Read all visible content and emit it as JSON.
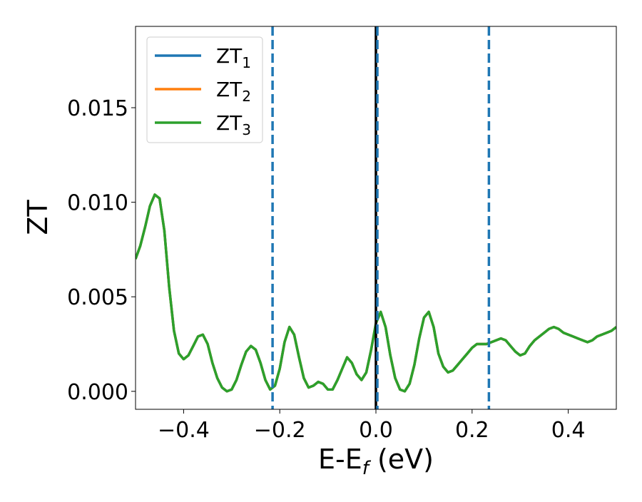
{
  "chart_data": {
    "type": "line",
    "title": "",
    "xlabel": "E-E",
    "xlabel_sub": "f",
    "xlabel_unit": " (eV)",
    "ylabel": "ZT",
    "xlim": [
      -0.5,
      0.5
    ],
    "ylim": [
      -0.00095,
      0.0193
    ],
    "grid": false,
    "legend_position": "top-left",
    "xticks": [
      {
        "value": -0.4,
        "label": "−0.4"
      },
      {
        "value": -0.2,
        "label": "−0.2"
      },
      {
        "value": 0.0,
        "label": "0.0"
      },
      {
        "value": 0.2,
        "label": "0.2"
      },
      {
        "value": 0.4,
        "label": "0.4"
      }
    ],
    "yticks": [
      {
        "value": 0.0,
        "label": "0.000"
      },
      {
        "value": 0.005,
        "label": "0.005"
      },
      {
        "value": 0.01,
        "label": "0.010"
      },
      {
        "value": 0.015,
        "label": "0.015"
      }
    ],
    "legend": [
      {
        "base": "ZT",
        "sub": "1",
        "color": "#1f77b4"
      },
      {
        "base": "ZT",
        "sub": "2",
        "color": "#ff7f0e"
      },
      {
        "base": "ZT",
        "sub": "3",
        "color": "#2ca02c"
      }
    ],
    "vlines": [
      {
        "x": -0.215,
        "style": "dashed",
        "color": "#1f77b4"
      },
      {
        "x": 0.0,
        "style": "solid",
        "color": "#000000"
      },
      {
        "x": 0.003,
        "style": "dashed",
        "color": "#1f77b4"
      },
      {
        "x": 0.235,
        "style": "dashed",
        "color": "#1f77b4"
      }
    ],
    "x": [
      -0.5,
      -0.49,
      -0.48,
      -0.47,
      -0.46,
      -0.45,
      -0.44,
      -0.43,
      -0.42,
      -0.41,
      -0.4,
      -0.39,
      -0.38,
      -0.37,
      -0.36,
      -0.35,
      -0.34,
      -0.33,
      -0.32,
      -0.31,
      -0.3,
      -0.29,
      -0.28,
      -0.27,
      -0.26,
      -0.25,
      -0.24,
      -0.23,
      -0.22,
      -0.21,
      -0.2,
      -0.19,
      -0.18,
      -0.17,
      -0.16,
      -0.15,
      -0.14,
      -0.13,
      -0.12,
      -0.11,
      -0.1,
      -0.09,
      -0.08,
      -0.07,
      -0.06,
      -0.05,
      -0.04,
      -0.03,
      -0.02,
      -0.01,
      0.0,
      0.01,
      0.02,
      0.03,
      0.04,
      0.05,
      0.06,
      0.07,
      0.08,
      0.09,
      0.1,
      0.11,
      0.12,
      0.13,
      0.14,
      0.15,
      0.16,
      0.17,
      0.18,
      0.19,
      0.2,
      0.21,
      0.22,
      0.23,
      0.24,
      0.25,
      0.26,
      0.27,
      0.28,
      0.29,
      0.3,
      0.31,
      0.32,
      0.33,
      0.34,
      0.35,
      0.36,
      0.37,
      0.38,
      0.39,
      0.4,
      0.41,
      0.42,
      0.43,
      0.44,
      0.45,
      0.46,
      0.47,
      0.48,
      0.49,
      0.5
    ],
    "series": [
      {
        "name": "ZT₁",
        "color": "#1f77b4",
        "values": [
          0.007,
          0.0077,
          0.0087,
          0.0098,
          0.0104,
          0.0102,
          0.0085,
          0.0055,
          0.0032,
          0.002,
          0.0017,
          0.0019,
          0.0024,
          0.0029,
          0.003,
          0.0025,
          0.0015,
          0.0007,
          0.0002,
          0.0,
          0.0001,
          0.0006,
          0.0014,
          0.0021,
          0.0024,
          0.0022,
          0.0015,
          0.0006,
          0.0001,
          0.0003,
          0.0012,
          0.0026,
          0.0034,
          0.003,
          0.0018,
          0.0007,
          0.0002,
          0.0003,
          0.0005,
          0.0004,
          0.0001,
          0.0001,
          0.0006,
          0.0012,
          0.0018,
          0.0015,
          0.0009,
          0.0006,
          0.001,
          0.0022,
          0.0036,
          0.0042,
          0.0034,
          0.0019,
          0.0007,
          0.0001,
          0.0,
          0.0004,
          0.0014,
          0.0028,
          0.0039,
          0.0042,
          0.0034,
          0.002,
          0.0013,
          0.001,
          0.0011,
          0.0014,
          0.0017,
          0.002,
          0.0023,
          0.0025,
          0.0025,
          0.0025,
          0.0026,
          0.0027,
          0.0028,
          0.0027,
          0.0024,
          0.0021,
          0.0019,
          0.002,
          0.0024,
          0.0027,
          0.0029,
          0.0031,
          0.0033,
          0.0034,
          0.0033,
          0.0031,
          0.003,
          0.0029,
          0.0028,
          0.0027,
          0.0026,
          0.0027,
          0.0029,
          0.003,
          0.0031,
          0.0032,
          0.0034
        ]
      },
      {
        "name": "ZT₂",
        "color": "#ff7f0e",
        "values": [
          0.007,
          0.0077,
          0.0087,
          0.0098,
          0.0104,
          0.0102,
          0.0085,
          0.0055,
          0.0032,
          0.002,
          0.0017,
          0.0019,
          0.0024,
          0.0029,
          0.003,
          0.0025,
          0.0015,
          0.0007,
          0.0002,
          0.0,
          0.0001,
          0.0006,
          0.0014,
          0.0021,
          0.0024,
          0.0022,
          0.0015,
          0.0006,
          0.0001,
          0.0003,
          0.0012,
          0.0026,
          0.0034,
          0.003,
          0.0018,
          0.0007,
          0.0002,
          0.0003,
          0.0005,
          0.0004,
          0.0001,
          0.0001,
          0.0006,
          0.0012,
          0.0018,
          0.0015,
          0.0009,
          0.0006,
          0.001,
          0.0022,
          0.0036,
          0.0042,
          0.0034,
          0.0019,
          0.0007,
          0.0001,
          0.0,
          0.0004,
          0.0014,
          0.0028,
          0.0039,
          0.0042,
          0.0034,
          0.002,
          0.0013,
          0.001,
          0.0011,
          0.0014,
          0.0017,
          0.002,
          0.0023,
          0.0025,
          0.0025,
          0.0025,
          0.0026,
          0.0027,
          0.0028,
          0.0027,
          0.0024,
          0.0021,
          0.0019,
          0.002,
          0.0024,
          0.0027,
          0.0029,
          0.0031,
          0.0033,
          0.0034,
          0.0033,
          0.0031,
          0.003,
          0.0029,
          0.0028,
          0.0027,
          0.0026,
          0.0027,
          0.0029,
          0.003,
          0.0031,
          0.0032,
          0.0034
        ]
      },
      {
        "name": "ZT₃",
        "color": "#2ca02c",
        "values": [
          0.007,
          0.0077,
          0.0087,
          0.0098,
          0.0104,
          0.0102,
          0.0085,
          0.0055,
          0.0032,
          0.002,
          0.0017,
          0.0019,
          0.0024,
          0.0029,
          0.003,
          0.0025,
          0.0015,
          0.0007,
          0.0002,
          0.0,
          0.0001,
          0.0006,
          0.0014,
          0.0021,
          0.0024,
          0.0022,
          0.0015,
          0.0006,
          0.0001,
          0.0003,
          0.0012,
          0.0026,
          0.0034,
          0.003,
          0.0018,
          0.0007,
          0.0002,
          0.0003,
          0.0005,
          0.0004,
          0.0001,
          0.0001,
          0.0006,
          0.0012,
          0.0018,
          0.0015,
          0.0009,
          0.0006,
          0.001,
          0.0022,
          0.0036,
          0.0042,
          0.0034,
          0.0019,
          0.0007,
          0.0001,
          0.0,
          0.0004,
          0.0014,
          0.0028,
          0.0039,
          0.0042,
          0.0034,
          0.002,
          0.0013,
          0.001,
          0.0011,
          0.0014,
          0.0017,
          0.002,
          0.0023,
          0.0025,
          0.0025,
          0.0025,
          0.0026,
          0.0027,
          0.0028,
          0.0027,
          0.0024,
          0.0021,
          0.0019,
          0.002,
          0.0024,
          0.0027,
          0.0029,
          0.0031,
          0.0033,
          0.0034,
          0.0033,
          0.0031,
          0.003,
          0.0029,
          0.0028,
          0.0027,
          0.0026,
          0.0027,
          0.0029,
          0.003,
          0.0031,
          0.0032,
          0.0034
        ]
      }
    ]
  }
}
